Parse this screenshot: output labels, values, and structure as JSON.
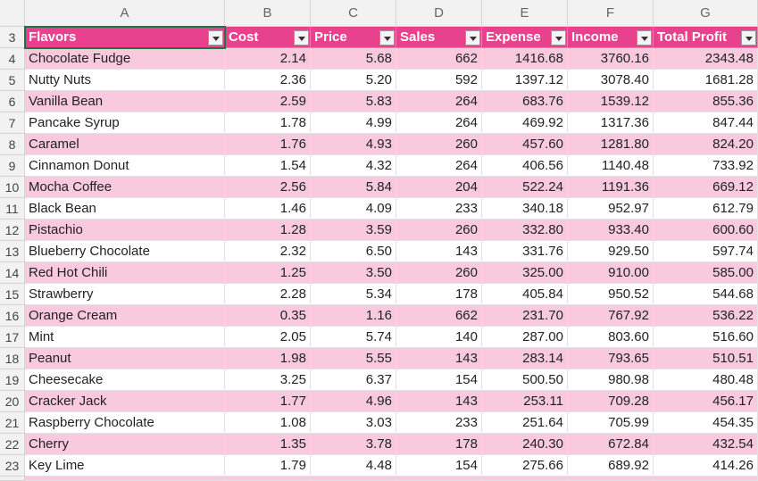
{
  "columns": [
    "A",
    "B",
    "C",
    "D",
    "E",
    "F",
    "G"
  ],
  "row_numbers": [
    3,
    4,
    5,
    6,
    7,
    8,
    9,
    10,
    11,
    12,
    13,
    14,
    15,
    16,
    17,
    18,
    19,
    20,
    21,
    22,
    23
  ],
  "headers": [
    "Flavors",
    "Cost",
    "Price",
    "Sales",
    "Expense",
    "Income",
    "Total Profit"
  ],
  "rows": [
    [
      "Chocolate Fudge",
      "2.14",
      "5.68",
      "662",
      "1416.68",
      "3760.16",
      "2343.48"
    ],
    [
      "Nutty Nuts",
      "2.36",
      "5.20",
      "592",
      "1397.12",
      "3078.40",
      "1681.28"
    ],
    [
      "Vanilla Bean",
      "2.59",
      "5.83",
      "264",
      "683.76",
      "1539.12",
      "855.36"
    ],
    [
      "Pancake Syrup",
      "1.78",
      "4.99",
      "264",
      "469.92",
      "1317.36",
      "847.44"
    ],
    [
      "Caramel",
      "1.76",
      "4.93",
      "260",
      "457.60",
      "1281.80",
      "824.20"
    ],
    [
      "Cinnamon Donut",
      "1.54",
      "4.32",
      "264",
      "406.56",
      "1140.48",
      "733.92"
    ],
    [
      "Mocha Coffee",
      "2.56",
      "5.84",
      "204",
      "522.24",
      "1191.36",
      "669.12"
    ],
    [
      "Black Bean",
      "1.46",
      "4.09",
      "233",
      "340.18",
      "952.97",
      "612.79"
    ],
    [
      "Pistachio",
      "1.28",
      "3.59",
      "260",
      "332.80",
      "933.40",
      "600.60"
    ],
    [
      "Blueberry Chocolate",
      "2.32",
      "6.50",
      "143",
      "331.76",
      "929.50",
      "597.74"
    ],
    [
      "Red Hot Chili",
      "1.25",
      "3.50",
      "260",
      "325.00",
      "910.00",
      "585.00"
    ],
    [
      "Strawberry",
      "2.28",
      "5.34",
      "178",
      "405.84",
      "950.52",
      "544.68"
    ],
    [
      "Orange Cream",
      "0.35",
      "1.16",
      "662",
      "231.70",
      "767.92",
      "536.22"
    ],
    [
      "Mint",
      "2.05",
      "5.74",
      "140",
      "287.00",
      "803.60",
      "516.60"
    ],
    [
      "Peanut",
      "1.98",
      "5.55",
      "143",
      "283.14",
      "793.65",
      "510.51"
    ],
    [
      "Cheesecake",
      "3.25",
      "6.37",
      "154",
      "500.50",
      "980.98",
      "480.48"
    ],
    [
      "Cracker Jack",
      "1.77",
      "4.96",
      "143",
      "253.11",
      "709.28",
      "456.17"
    ],
    [
      "Raspberry Chocolate",
      "1.08",
      "3.03",
      "233",
      "251.64",
      "705.99",
      "454.35"
    ],
    [
      "Cherry",
      "1.35",
      "3.78",
      "178",
      "240.30",
      "672.84",
      "432.54"
    ],
    [
      "Key Lime",
      "1.79",
      "4.48",
      "154",
      "275.66",
      "689.92",
      "414.26"
    ]
  ]
}
